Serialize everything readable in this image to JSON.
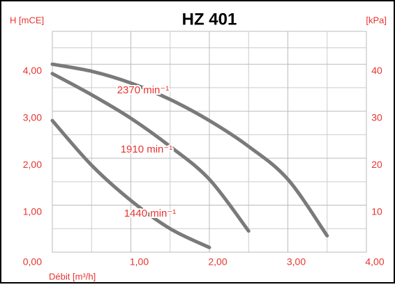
{
  "chart_data": {
    "type": "line",
    "title": "HZ 401",
    "y_label": "H [mCE]",
    "y2_label": "[kPa]",
    "x_label": "Débit [m³/h]",
    "xlim": [
      0,
      4
    ],
    "xticks": [
      {
        "value": 1,
        "label": "1,00"
      },
      {
        "value": 2,
        "label": "2,00"
      },
      {
        "value": 3,
        "label": "3,00"
      },
      {
        "value": 4,
        "label": "4,00"
      }
    ],
    "ylim": [
      0,
      4.7
    ],
    "yticks": [
      {
        "value": 0,
        "label": "0,00"
      },
      {
        "value": 1,
        "label": "1,00"
      },
      {
        "value": 2,
        "label": "2,00"
      },
      {
        "value": 3,
        "label": "3,00"
      },
      {
        "value": 4,
        "label": "4,00"
      }
    ],
    "y2lim": [
      0,
      47
    ],
    "y2ticks": [
      10,
      20,
      30,
      40
    ],
    "grid": true,
    "series": [
      {
        "name": "2370 min⁻¹",
        "color": "#7a7a7a",
        "x": [
          0,
          0.5,
          1,
          1.5,
          2,
          2.5,
          3,
          3.5
        ],
        "values": [
          4.0,
          3.85,
          3.6,
          3.25,
          2.8,
          2.25,
          1.55,
          0.35
        ]
      },
      {
        "name": "1910 min⁻¹",
        "color": "#7a7a7a",
        "x": [
          0,
          0.5,
          1,
          1.5,
          2,
          2.5
        ],
        "values": [
          3.8,
          3.35,
          2.85,
          2.25,
          1.55,
          0.45
        ]
      },
      {
        "name": "1440 min⁻¹",
        "color": "#7a7a7a",
        "x": [
          0,
          0.5,
          1,
          1.5,
          2
        ],
        "values": [
          2.8,
          1.85,
          1.1,
          0.5,
          0.1
        ]
      }
    ]
  }
}
